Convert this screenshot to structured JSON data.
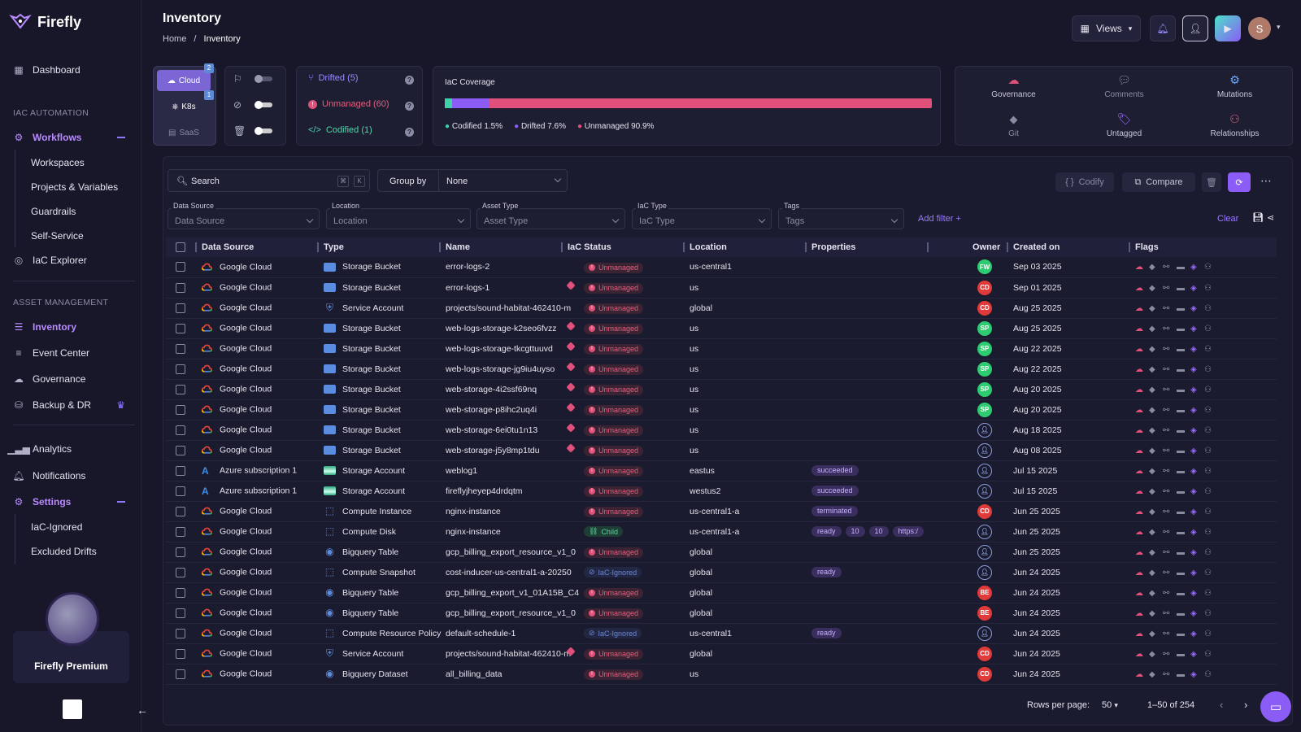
{
  "app": {
    "name": "Firefly"
  },
  "header": {
    "title": "Inventory",
    "breadcrumb_home": "Home",
    "breadcrumb_sep": "/",
    "breadcrumb_current": "Inventory",
    "views_label": "Views",
    "user_initial": "S"
  },
  "sidebar": {
    "dashboard": "Dashboard",
    "iac_automation": "IAC AUTOMATION",
    "workflows": "Workflows",
    "workflow_items": [
      "Workspaces",
      "Projects & Variables",
      "Guardrails",
      "Self-Service"
    ],
    "iac_explorer": "IaC Explorer",
    "asset_management": "ASSET MANAGEMENT",
    "inventory": "Inventory",
    "event_center": "Event Center",
    "governance": "Governance",
    "backup": "Backup & DR",
    "analytics": "Analytics",
    "notifications": "Notifications",
    "settings": "Settings",
    "settings_items": [
      "IaC-Ignored",
      "Excluded Drifts"
    ],
    "premium": "Firefly Premium"
  },
  "providers": {
    "cloud": "Cloud",
    "cloud_badge": "2",
    "k8s": "K8s",
    "k8s_badge": "1",
    "saas": "SaaS"
  },
  "status": {
    "drifted": "Drifted (5)",
    "unmanaged": "Unmanaged (60)",
    "codified": "Codified (1)"
  },
  "coverage": {
    "title": "IaC Coverage",
    "codified_label": "Codified",
    "codified_pct": "1.5%",
    "drifted_label": "Drifted",
    "drifted_pct": "7.6%",
    "unmanaged_label": "Unmanaged",
    "unmanaged_pct": "90.9%",
    "codified_value": 1.5,
    "drifted_value": 7.6,
    "unmanaged_value": 90.9
  },
  "quick": {
    "governance": "Governance",
    "comments": "Comments",
    "mutations": "Mutations",
    "git": "Git",
    "untagged": "Untagged",
    "relationships": "Relationships"
  },
  "toolbar": {
    "search_placeholder": "Search",
    "kbd1": "⌘",
    "kbd2": "K",
    "group_by": "Group by",
    "group_value": "None",
    "codify": "Codify",
    "compare": "Compare"
  },
  "filters": [
    {
      "label": "Data Source",
      "placeholder": "Data Source"
    },
    {
      "label": "Location",
      "placeholder": "Location"
    },
    {
      "label": "Asset Type",
      "placeholder": "Asset Type"
    },
    {
      "label": "IaC Type",
      "placeholder": "IaC Type"
    },
    {
      "label": "Tags",
      "placeholder": "Tags"
    }
  ],
  "add_filter": "Add filter +",
  "clear": "Clear",
  "columns": [
    "Data Source",
    "Type",
    "Name",
    "IaC Status",
    "Location",
    "Properties",
    "Owner",
    "Created on",
    "Flags"
  ],
  "rows": [
    {
      "source": "Google Cloud",
      "type": "Storage Bucket",
      "name": "error-logs-2",
      "status": "Unmanaged",
      "location": "us-central1",
      "props": [],
      "owner": "FW",
      "created": "Sep 03 2025",
      "tag": false
    },
    {
      "source": "Google Cloud",
      "type": "Storage Bucket",
      "name": "error-logs-1",
      "status": "Unmanaged",
      "location": "us",
      "props": [],
      "owner": "CD",
      "created": "Sep 01 2025",
      "tag": true
    },
    {
      "source": "Google Cloud",
      "type": "Service Account",
      "name": "projects/sound-habitat-462410-m",
      "status": "Unmanaged",
      "location": "global",
      "props": [],
      "owner": "CD",
      "created": "Aug 25 2025",
      "tag": false
    },
    {
      "source": "Google Cloud",
      "type": "Storage Bucket",
      "name": "web-logs-storage-k2seo6fvzz",
      "status": "Unmanaged",
      "location": "us",
      "props": [],
      "owner": "SP",
      "created": "Aug 25 2025",
      "tag": true
    },
    {
      "source": "Google Cloud",
      "type": "Storage Bucket",
      "name": "web-logs-storage-tkcgttuuvd",
      "status": "Unmanaged",
      "location": "us",
      "props": [],
      "owner": "SP",
      "created": "Aug 22 2025",
      "tag": true
    },
    {
      "source": "Google Cloud",
      "type": "Storage Bucket",
      "name": "web-logs-storage-jg9iu4uyso",
      "status": "Unmanaged",
      "location": "us",
      "props": [],
      "owner": "SP",
      "created": "Aug 22 2025",
      "tag": true
    },
    {
      "source": "Google Cloud",
      "type": "Storage Bucket",
      "name": "web-storage-4i2ssf69nq",
      "status": "Unmanaged",
      "location": "us",
      "props": [],
      "owner": "SP",
      "created": "Aug 20 2025",
      "tag": true
    },
    {
      "source": "Google Cloud",
      "type": "Storage Bucket",
      "name": "web-storage-p8ihc2uq4i",
      "status": "Unmanaged",
      "location": "us",
      "props": [],
      "owner": "SP",
      "created": "Aug 20 2025",
      "tag": true
    },
    {
      "source": "Google Cloud",
      "type": "Storage Bucket",
      "name": "web-storage-6ei0tu1n13",
      "status": "Unmanaged",
      "location": "us",
      "props": [],
      "owner": "",
      "created": "Aug 18 2025",
      "tag": true
    },
    {
      "source": "Google Cloud",
      "type": "Storage Bucket",
      "name": "web-storage-j5y8mp1tdu",
      "status": "Unmanaged",
      "location": "us",
      "props": [],
      "owner": "",
      "created": "Aug 08 2025",
      "tag": true
    },
    {
      "source": "Azure subscription 1",
      "type": "Storage Account",
      "name": "weblog1",
      "status": "Unmanaged",
      "location": "eastus",
      "props": [
        "succeeded"
      ],
      "owner": "",
      "created": "Jul 15 2025",
      "tag": false
    },
    {
      "source": "Azure subscription 1",
      "type": "Storage Account",
      "name": "fireflyjheyep4drdqtm",
      "status": "Unmanaged",
      "location": "westus2",
      "props": [
        "succeeded"
      ],
      "owner": "",
      "created": "Jul 15 2025",
      "tag": false
    },
    {
      "source": "Google Cloud",
      "type": "Compute Instance",
      "name": "nginx-instance",
      "status": "Unmanaged",
      "location": "us-central1-a",
      "props": [
        "terminated"
      ],
      "owner": "CD",
      "created": "Jun 25 2025",
      "tag": false
    },
    {
      "source": "Google Cloud",
      "type": "Compute Disk",
      "name": "nginx-instance",
      "status": "Child",
      "location": "us-central1-a",
      "props": [
        "ready",
        "10",
        "10",
        "https:/"
      ],
      "owner": "",
      "created": "Jun 25 2025",
      "tag": false
    },
    {
      "source": "Google Cloud",
      "type": "Bigquery Table",
      "name": "gcp_billing_export_resource_v1_0",
      "status": "Unmanaged",
      "location": "global",
      "props": [],
      "owner": "",
      "created": "Jun 25 2025",
      "tag": false
    },
    {
      "source": "Google Cloud",
      "type": "Compute Snapshot",
      "name": "cost-inducer-us-central1-a-20250",
      "status": "IaC-Ignored",
      "location": "global",
      "props": [
        "ready"
      ],
      "owner": "",
      "created": "Jun 24 2025",
      "tag": false
    },
    {
      "source": "Google Cloud",
      "type": "Bigquery Table",
      "name": "gcp_billing_export_v1_01A15B_C4",
      "status": "Unmanaged",
      "location": "global",
      "props": [],
      "owner": "BE",
      "created": "Jun 24 2025",
      "tag": false
    },
    {
      "source": "Google Cloud",
      "type": "Bigquery Table",
      "name": "gcp_billing_export_resource_v1_0",
      "status": "Unmanaged",
      "location": "global",
      "props": [],
      "owner": "BE",
      "created": "Jun 24 2025",
      "tag": false
    },
    {
      "source": "Google Cloud",
      "type": "Compute Resource Policy",
      "name": "default-schedule-1",
      "status": "IaC-Ignored",
      "location": "us-central1",
      "props": [
        "ready"
      ],
      "owner": "",
      "created": "Jun 24 2025",
      "tag": false
    },
    {
      "source": "Google Cloud",
      "type": "Service Account",
      "name": "projects/sound-habitat-462410-m",
      "status": "Unmanaged",
      "location": "global",
      "props": [],
      "owner": "CD",
      "created": "Jun 24 2025",
      "tag": true
    },
    {
      "source": "Google Cloud",
      "type": "Bigquery Dataset",
      "name": "all_billing_data",
      "status": "Unmanaged",
      "location": "us",
      "props": [],
      "owner": "CD",
      "created": "Jun 24 2025",
      "tag": false
    }
  ],
  "pagination": {
    "rows_label": "Rows per page:",
    "rows_value": "50",
    "range": "1–50 of 254"
  },
  "colors": {
    "accent": "#8b5cf6",
    "unmanaged": "#e0507a",
    "codified": "#3fd1a8",
    "drifted": "#8b5cf6"
  }
}
